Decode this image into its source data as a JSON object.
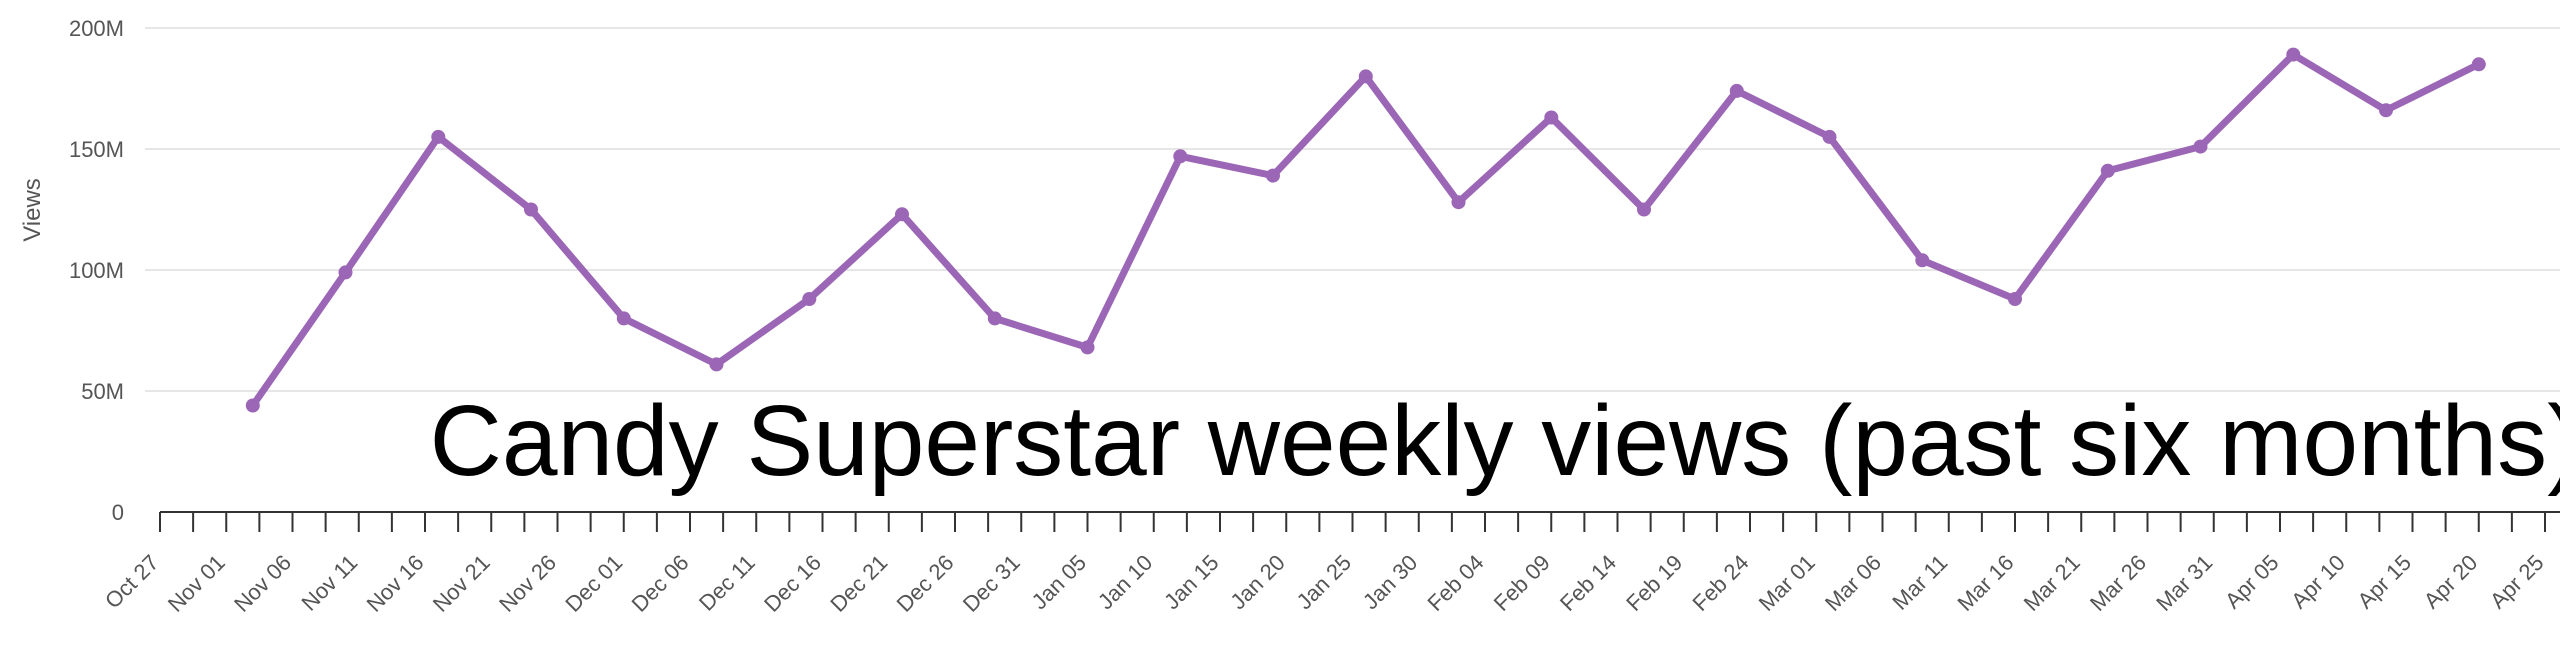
{
  "chart_data": {
    "type": "line",
    "title": "Candy Superstar weekly views (past six months)",
    "ylabel": "Views",
    "xlabel": "",
    "ylim": [
      0,
      200000000
    ],
    "y_ticks": [
      {
        "value": 0,
        "label": "0"
      },
      {
        "value": 50000000,
        "label": "50M"
      },
      {
        "value": 100000000,
        "label": "100M"
      },
      {
        "value": 150000000,
        "label": "150M"
      },
      {
        "value": 200000000,
        "label": "200M"
      }
    ],
    "x_ticks": [
      "Oct 27",
      "Nov 01",
      "Nov 06",
      "Nov 11",
      "Nov 16",
      "Nov 21",
      "Nov 26",
      "Dec 01",
      "Dec 06",
      "Dec 11",
      "Dec 16",
      "Dec 21",
      "Dec 26",
      "Dec 31",
      "Jan 05",
      "Jan 10",
      "Jan 15",
      "Jan 20",
      "Jan 25",
      "Jan 30",
      "Feb 04",
      "Feb 09",
      "Feb 14",
      "Feb 19",
      "Feb 24",
      "Mar 01",
      "Mar 06",
      "Mar 11",
      "Mar 16",
      "Mar 21",
      "Mar 26",
      "Mar 31",
      "Apr 05",
      "Apr 10",
      "Apr 15",
      "Apr 20",
      "Apr 25"
    ],
    "x_range": [
      "2023-10-27",
      "2024-04-25"
    ],
    "grid": true,
    "color": "#9b66b5",
    "series": [
      {
        "points": [
          {
            "x": "2023-11-03",
            "y": 44000000
          },
          {
            "x": "2023-11-10",
            "y": 99000000
          },
          {
            "x": "2023-11-17",
            "y": 155000000
          },
          {
            "x": "2023-11-24",
            "y": 125000000
          },
          {
            "x": "2023-12-01",
            "y": 80000000
          },
          {
            "x": "2023-12-08",
            "y": 61000000
          },
          {
            "x": "2023-12-15",
            "y": 88000000
          },
          {
            "x": "2023-12-22",
            "y": 123000000
          },
          {
            "x": "2023-12-29",
            "y": 80000000
          },
          {
            "x": "2024-01-05",
            "y": 68000000
          },
          {
            "x": "2024-01-12",
            "y": 147000000
          },
          {
            "x": "2024-01-19",
            "y": 139000000
          },
          {
            "x": "2024-01-26",
            "y": 180000000
          },
          {
            "x": "2024-02-02",
            "y": 128000000
          },
          {
            "x": "2024-02-09",
            "y": 163000000
          },
          {
            "x": "2024-02-16",
            "y": 125000000
          },
          {
            "x": "2024-02-23",
            "y": 174000000
          },
          {
            "x": "2024-03-01",
            "y": 155000000
          },
          {
            "x": "2024-03-08",
            "y": 104000000
          },
          {
            "x": "2024-03-15",
            "y": 88000000
          },
          {
            "x": "2024-03-22",
            "y": 141000000
          },
          {
            "x": "2024-03-29",
            "y": 151000000
          },
          {
            "x": "2024-04-05",
            "y": 189000000
          },
          {
            "x": "2024-04-12",
            "y": 166000000
          },
          {
            "x": "2024-04-19",
            "y": 185000000
          }
        ]
      }
    ]
  }
}
